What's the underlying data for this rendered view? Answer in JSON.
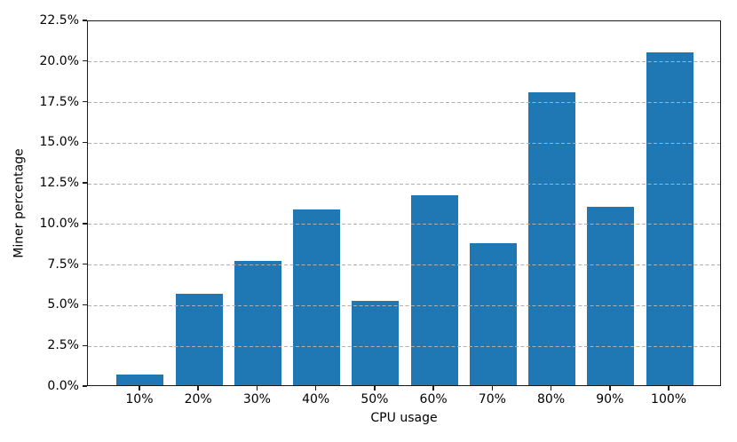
{
  "chart_data": {
    "type": "bar",
    "xlabel": "CPU usage",
    "ylabel": "Miner percentage",
    "categories": [
      "10%",
      "20%",
      "30%",
      "40%",
      "50%",
      "60%",
      "70%",
      "80%",
      "90%",
      "100%"
    ],
    "values": [
      0.65,
      5.6,
      7.65,
      10.8,
      5.2,
      11.7,
      8.75,
      18.0,
      11.0,
      20.5
    ],
    "ylim": [
      0,
      22.5
    ],
    "ytick_values": [
      0,
      2.5,
      5,
      7.5,
      10,
      12.5,
      15,
      17.5,
      20,
      22.5
    ],
    "ytick_labels": [
      "0.0%",
      "2.5%",
      "5.0%",
      "7.5%",
      "10.0%",
      "12.5%",
      "15.0%",
      "17.5%",
      "20.0%",
      "22.5%"
    ],
    "grid": "horizontal-dashed",
    "grid_on": true,
    "legend": "none",
    "bar_color": "#1f77b4",
    "grid_color": "#b0b0b0",
    "axis_color": "#1a1a1a"
  }
}
